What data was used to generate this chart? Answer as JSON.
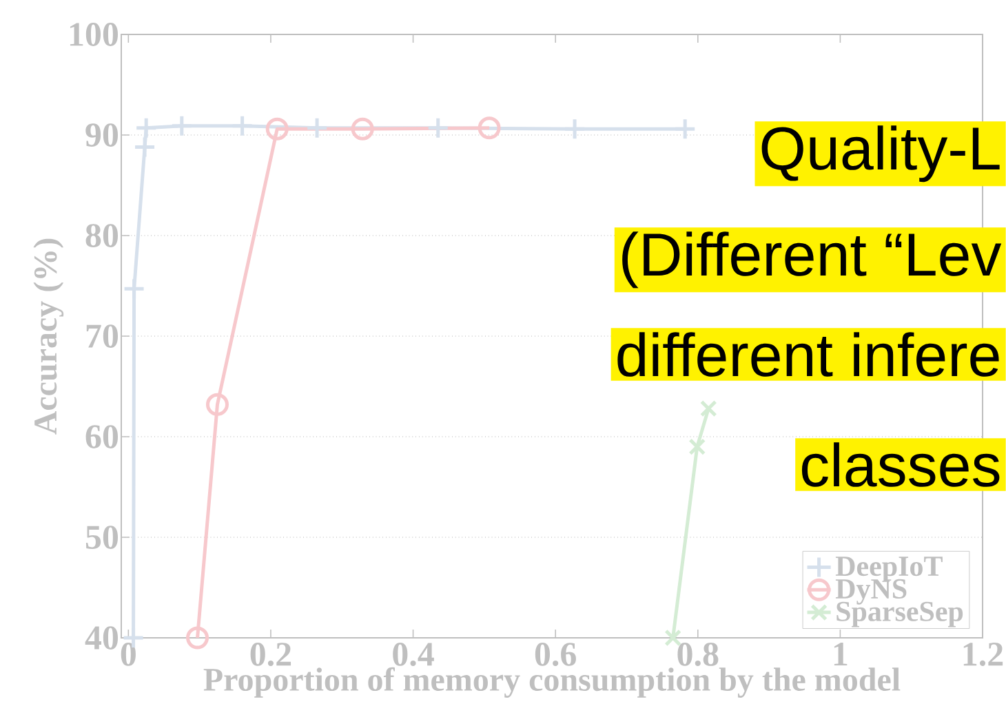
{
  "chart_data": {
    "type": "line",
    "xlabel": "Proportion of memory consumption by the model",
    "ylabel": "Accuracy (%)",
    "xlim": [
      -0.01,
      1.2
    ],
    "xticks": [
      0,
      0.2,
      0.4,
      0.6,
      0.8,
      1,
      1.2
    ],
    "ylim": [
      40,
      100
    ],
    "yticks": [
      40,
      50,
      60,
      70,
      80,
      90,
      100
    ],
    "grid": "y",
    "legend": "bottom right",
    "line_style": "solid",
    "series": [
      {
        "name": "DeepIoT",
        "color": "#d6e0ec",
        "marker": "plus",
        "x": [
          0.007,
          0.008,
          0.023,
          0.025,
          0.075,
          0.16,
          0.265,
          0.435,
          0.627,
          0.782
        ],
        "values": [
          40,
          74.7,
          88.8,
          90.7,
          90.9,
          90.9,
          90.7,
          90.7,
          90.6,
          90.6
        ]
      },
      {
        "name": "DyNS",
        "color": "#f7c8cc",
        "marker": "circle",
        "x": [
          0.097,
          0.125,
          0.209,
          0.329,
          0.507
        ],
        "values": [
          40,
          63.2,
          90.6,
          90.6,
          90.7
        ]
      },
      {
        "name": "SparseSep",
        "color": "#d4ecd4",
        "marker": "cross",
        "x": [
          0.765,
          0.799,
          0.815
        ],
        "values": [
          40,
          59.0,
          62.8
        ]
      }
    ],
    "annotations": [
      "Quality-L",
      "(Different “Lev",
      "different infere",
      "classes"
    ]
  }
}
